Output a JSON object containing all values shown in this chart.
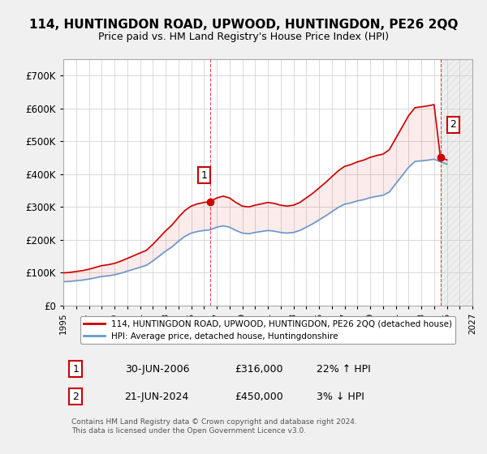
{
  "title": "114, HUNTINGDON ROAD, UPWOOD, HUNTINGDON, PE26 2QQ",
  "subtitle": "Price paid vs. HM Land Registry's House Price Index (HPI)",
  "red_label": "114, HUNTINGDON ROAD, UPWOOD, HUNTINGDON, PE26 2QQ (detached house)",
  "blue_label": "HPI: Average price, detached house, Huntingdonshire",
  "annotation1_label": "1",
  "annotation1_date": "30-JUN-2006",
  "annotation1_price": "£316,000",
  "annotation1_hpi": "22% ↑ HPI",
  "annotation2_label": "2",
  "annotation2_date": "21-JUN-2024",
  "annotation2_price": "£450,000",
  "annotation2_hpi": "3% ↓ HPI",
  "footnote": "Contains HM Land Registry data © Crown copyright and database right 2024.\nThis data is licensed under the Open Government Licence v3.0.",
  "ylim": [
    0,
    750000
  ],
  "yticks": [
    0,
    100000,
    200000,
    300000,
    400000,
    500000,
    600000,
    700000
  ],
  "ytick_labels": [
    "£0",
    "£100K",
    "£200K",
    "£300K",
    "£400K",
    "£500K",
    "£600K",
    "£700K"
  ],
  "background_color": "#f0f0f0",
  "plot_bg_color": "#ffffff",
  "red_color": "#cc0000",
  "blue_color": "#6699cc",
  "sale1_x": 2006.5,
  "sale1_y": 316000,
  "sale2_x": 2024.5,
  "sale2_y": 450000,
  "xmin": 1995,
  "xmax": 2027
}
